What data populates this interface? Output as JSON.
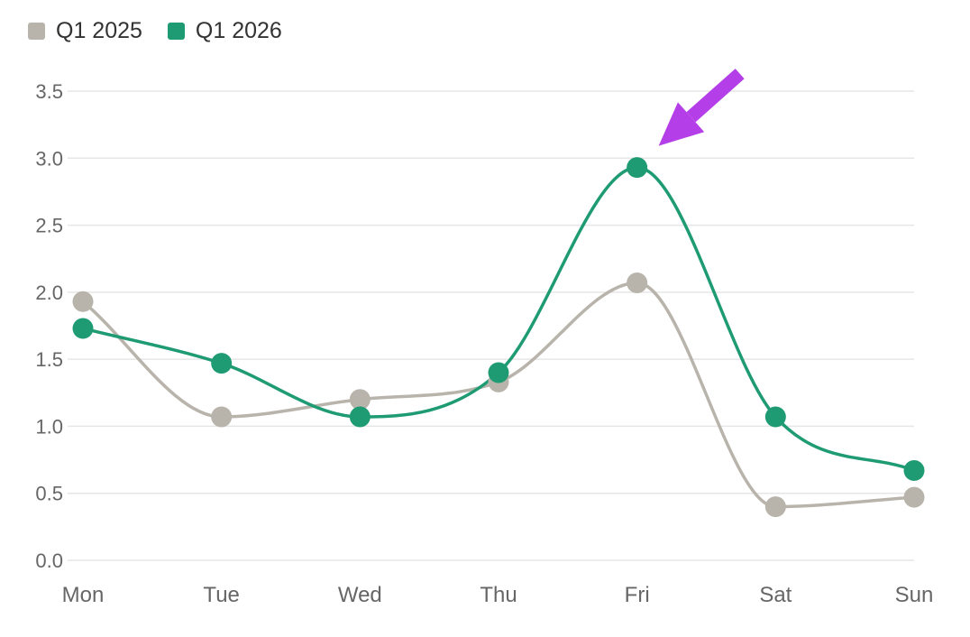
{
  "chart_data": {
    "type": "line",
    "title": "",
    "xlabel": "",
    "ylabel": "",
    "categories": [
      "Mon",
      "Tue",
      "Wed",
      "Thu",
      "Fri",
      "Sat",
      "Sun"
    ],
    "ylim": [
      0,
      3.5
    ],
    "yticks": [
      0.0,
      0.5,
      1.0,
      1.5,
      2.0,
      2.5,
      3.0,
      3.5
    ],
    "ytick_labels": [
      "0.0",
      "0.5",
      "1.0",
      "1.5",
      "2.0",
      "2.5",
      "3.0",
      "3.5"
    ],
    "grid": true,
    "legend_position": "top-left",
    "smooth": true,
    "series": [
      {
        "name": "Q1 2025",
        "color": "#b8b4ab",
        "values": [
          1.93,
          1.07,
          1.2,
          1.33,
          2.07,
          0.4,
          0.47
        ]
      },
      {
        "name": "Q1 2026",
        "color": "#1f9b73",
        "values": [
          1.73,
          1.47,
          1.07,
          1.4,
          2.93,
          1.07,
          0.67
        ]
      }
    ],
    "annotation": {
      "type": "arrow",
      "target_category": "Fri",
      "target_series": "Q1 2026",
      "color": "#b43ee8"
    }
  }
}
